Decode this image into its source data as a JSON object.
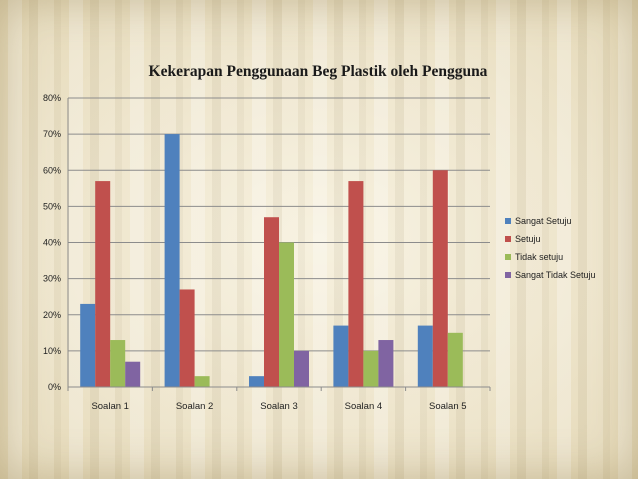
{
  "chart_data": {
    "type": "bar",
    "title": "Kekerapan Penggunaan Beg Plastik oleh Pengguna",
    "xlabel": "",
    "ylabel": "",
    "ylim": [
      0,
      80
    ],
    "y_tick_format": "percent",
    "y_ticks": [
      "0%",
      "10%",
      "20%",
      "30%",
      "40%",
      "50%",
      "60%",
      "70%",
      "80%"
    ],
    "categories": [
      "Soalan 1",
      "Soalan 2",
      "Soalan 3",
      "Soalan 4",
      "Soalan 5"
    ],
    "series": [
      {
        "name": "Sangat Setuju",
        "color": "#4f81bd",
        "values": [
          23,
          70,
          3,
          17,
          17
        ]
      },
      {
        "name": "Setuju",
        "color": "#c0504d",
        "values": [
          57,
          27,
          47,
          57,
          60
        ]
      },
      {
        "name": "Tidak setuju",
        "color": "#9bbb59",
        "values": [
          13,
          3,
          40,
          10,
          15
        ]
      },
      {
        "name": "Sangat Tidak Setuju",
        "color": "#8064a2",
        "values": [
          7,
          0,
          10,
          13,
          0
        ]
      }
    ],
    "grid": true,
    "legend_position": "right"
  }
}
